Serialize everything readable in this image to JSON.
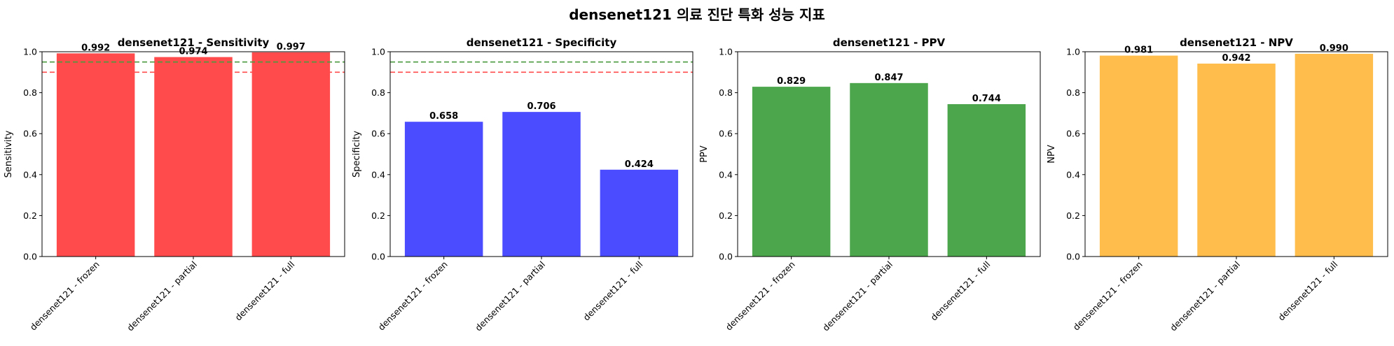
{
  "figure": {
    "suptitle": "densenet121 의료 진단 특화 성능 지표"
  },
  "chart_data": [
    {
      "type": "bar",
      "title": "densenet121 - Sensitivity",
      "xlabel": "",
      "ylabel": "Sensitivity",
      "categories": [
        "densenet121 - frozen",
        "densenet121 - partial",
        "densenet121 - full"
      ],
      "values": [
        0.992,
        0.974,
        0.997
      ],
      "value_labels": [
        "0.992",
        "0.974",
        "0.997"
      ],
      "ylim": [
        0,
        1.0
      ],
      "yticks": [
        "0.0",
        "0.2",
        "0.4",
        "0.6",
        "0.8",
        "1.0"
      ],
      "bar_color": "#ff4b4b",
      "reference_lines": [
        {
          "y": 0.95,
          "color": "#4a9a3f",
          "style": "dashed"
        },
        {
          "y": 0.9,
          "color": "#ff4b4b",
          "style": "dashed"
        }
      ],
      "grid": false
    },
    {
      "type": "bar",
      "title": "densenet121 - Specificity",
      "xlabel": "",
      "ylabel": "Specificity",
      "categories": [
        "densenet121 - frozen",
        "densenet121 - partial",
        "densenet121 - full"
      ],
      "values": [
        0.658,
        0.706,
        0.424
      ],
      "value_labels": [
        "0.658",
        "0.706",
        "0.424"
      ],
      "ylim": [
        0,
        1.0
      ],
      "yticks": [
        "0.0",
        "0.2",
        "0.4",
        "0.6",
        "0.8",
        "1.0"
      ],
      "bar_color": "#4b4bff",
      "reference_lines": [
        {
          "y": 0.95,
          "color": "#4a9a3f",
          "style": "dashed"
        },
        {
          "y": 0.9,
          "color": "#ff4b4b",
          "style": "dashed"
        }
      ],
      "grid": false
    },
    {
      "type": "bar",
      "title": "densenet121 - PPV",
      "xlabel": "",
      "ylabel": "PPV",
      "categories": [
        "densenet121 - frozen",
        "densenet121 - partial",
        "densenet121 - full"
      ],
      "values": [
        0.829,
        0.847,
        0.744
      ],
      "value_labels": [
        "0.829",
        "0.847",
        "0.744"
      ],
      "ylim": [
        0,
        1.0
      ],
      "yticks": [
        "0.0",
        "0.2",
        "0.4",
        "0.6",
        "0.8",
        "1.0"
      ],
      "bar_color": "#4ca64c",
      "reference_lines": [],
      "grid": false
    },
    {
      "type": "bar",
      "title": "densenet121 - NPV",
      "xlabel": "",
      "ylabel": "NPV",
      "categories": [
        "densenet121 - frozen",
        "densenet121 - partial",
        "densenet121 - full"
      ],
      "values": [
        0.981,
        0.942,
        0.99
      ],
      "value_labels": [
        "0.981",
        "0.942",
        "0.990"
      ],
      "ylim": [
        0,
        1.0
      ],
      "yticks": [
        "0.0",
        "0.2",
        "0.4",
        "0.6",
        "0.8",
        "1.0"
      ],
      "bar_color": "#ffbe4b",
      "reference_lines": [],
      "grid": false
    }
  ]
}
